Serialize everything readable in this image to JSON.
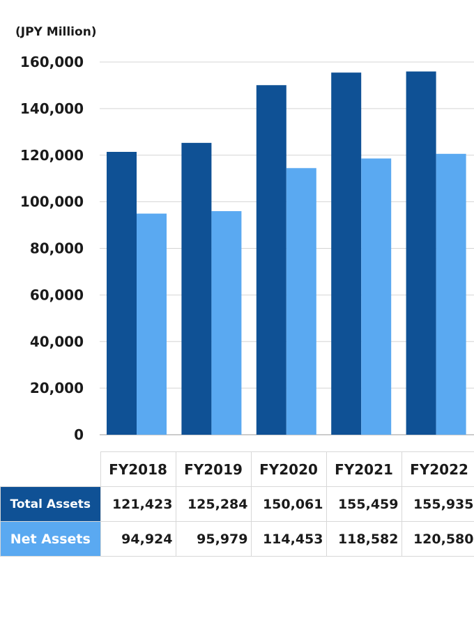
{
  "chart_data": {
    "type": "bar",
    "unit_label": "(JPY Million)",
    "categories": [
      "FY2018",
      "FY2019",
      "FY2020",
      "FY2021",
      "FY2022"
    ],
    "series": [
      {
        "name": "Total Assets",
        "values": [
          121423,
          125284,
          150061,
          155459,
          155935
        ],
        "color": "#0f5195"
      },
      {
        "name": "Net Assets",
        "values": [
          94924,
          95979,
          114453,
          118582,
          120580
        ],
        "color": "#5aa9f1"
      }
    ],
    "ylim": [
      0,
      160000
    ],
    "yticks": [
      "0",
      "20,000",
      "40,000",
      "60,000",
      "80,000",
      "100,000",
      "120,000",
      "140,000",
      "160,000"
    ],
    "grid": true,
    "legend": "data-table"
  },
  "table": {
    "rows": [
      {
        "label": "Total Assets",
        "values": [
          "121,423",
          "125,284",
          "150,061",
          "155,459",
          "155,935"
        ]
      },
      {
        "label": "Net Assets",
        "values": [
          "94,924",
          "95,979",
          "114,453",
          "118,582",
          "120,580"
        ]
      }
    ]
  }
}
